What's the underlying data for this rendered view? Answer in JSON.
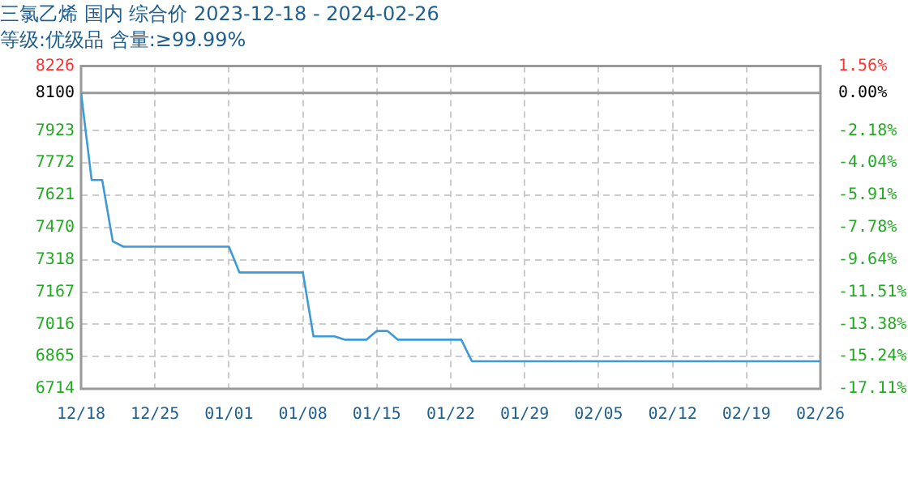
{
  "chart_data": {
    "type": "line",
    "title": "三氯乙烯 国内 综合价 2023-12-18 - 2024-02-26",
    "subtitle": "等级:优级品 含量:≥99.99%",
    "x": [
      "2023-12-18",
      "2023-12-19",
      "2023-12-20",
      "2023-12-21",
      "2023-12-22",
      "2024-01-01",
      "2024-01-02",
      "2024-01-08",
      "2024-01-09",
      "2024-01-11",
      "2024-01-12",
      "2024-01-14",
      "2024-01-15",
      "2024-01-16",
      "2024-01-17",
      "2024-01-23",
      "2024-01-24",
      "2024-02-26"
    ],
    "series": [
      {
        "color": "#3d9ad6",
        "values": [
          8100,
          7692,
          7692,
          7405,
          7380,
          7380,
          7259,
          7259,
          6960,
          6960,
          6944,
          6944,
          6985,
          6985,
          6944,
          6944,
          6843,
          6843
        ]
      }
    ],
    "xlim": [
      "2023-12-18",
      "2024-02-26"
    ],
    "xticks": [
      {
        "value": "2023-12-18",
        "label": "12/18"
      },
      {
        "value": "2023-12-25",
        "label": "12/25"
      },
      {
        "value": "2024-01-01",
        "label": "01/01"
      },
      {
        "value": "2024-01-08",
        "label": "01/08"
      },
      {
        "value": "2024-01-15",
        "label": "01/15"
      },
      {
        "value": "2024-01-22",
        "label": "01/22"
      },
      {
        "value": "2024-01-29",
        "label": "01/29"
      },
      {
        "value": "2024-02-05",
        "label": "02/05"
      },
      {
        "value": "2024-02-12",
        "label": "02/12"
      },
      {
        "value": "2024-02-19",
        "label": "02/19"
      },
      {
        "value": "2024-02-26",
        "label": "02/26"
      }
    ],
    "ylim": [
      6714,
      8226
    ],
    "yticks": [
      6714,
      6865,
      7016,
      7167,
      7318,
      7470,
      7621,
      7772,
      7923,
      8100,
      8226
    ],
    "y2lim": [
      -17.11,
      1.56
    ],
    "y2ticks": [
      {
        "value": -17.11,
        "label": "-17.11%"
      },
      {
        "value": -15.24,
        "label": "-15.24%"
      },
      {
        "value": -13.38,
        "label": "-13.38%"
      },
      {
        "value": -11.51,
        "label": "-11.51%"
      },
      {
        "value": -9.64,
        "label": "-9.64%"
      },
      {
        "value": -7.78,
        "label": "-7.78%"
      },
      {
        "value": -5.91,
        "label": "-5.91%"
      },
      {
        "value": -4.04,
        "label": "-4.04%"
      },
      {
        "value": -2.18,
        "label": "-2.18%"
      },
      {
        "value": 0,
        "label": "0.00%"
      },
      {
        "value": 1.56,
        "label": "1.56%"
      }
    ],
    "ref_lines": [
      {
        "axis": "y",
        "value": 8100,
        "color": "#999999",
        "line_style": "solid"
      }
    ],
    "grid": true,
    "legend": false,
    "marker": "none",
    "line_style": "solid"
  }
}
